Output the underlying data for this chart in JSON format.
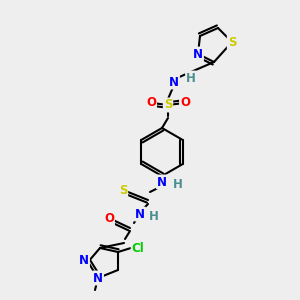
{
  "background_color": "#eeeeee",
  "colors": {
    "N": "#0000ff",
    "O": "#ff0000",
    "S": "#cccc00",
    "Cl": "#00cc00",
    "H": "#4a9090",
    "C": "#000000"
  },
  "lw": 1.5,
  "fs": 8.5
}
